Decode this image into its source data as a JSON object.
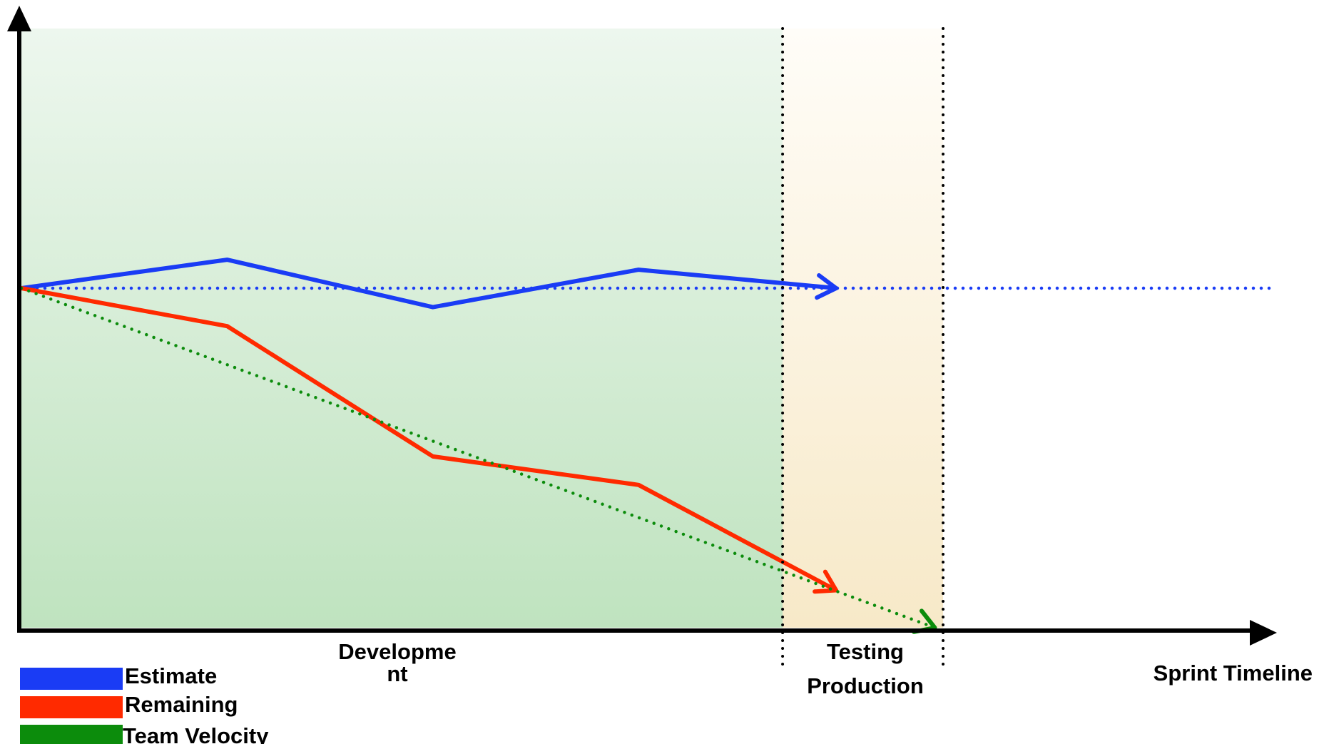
{
  "chart_data": {
    "type": "line",
    "title": "",
    "xlabel": "Sprint Timeline",
    "ylabel": "",
    "xlim": [
      0,
      6.2
    ],
    "ylim": [
      0,
      10
    ],
    "grid": false,
    "legend_position": "bottom-left",
    "phases": [
      {
        "name": "Development",
        "label_lines": [
          "Developme",
          "nt"
        ],
        "start": 0,
        "end": 3.7,
        "color": "#c8e6c9"
      },
      {
        "name": "Testing",
        "label_lines": [
          "Testing"
        ],
        "start": 3.7,
        "end": 4.48,
        "color": "#fbf0d6"
      },
      {
        "name": "Production",
        "label_lines": [
          "Production"
        ],
        "start": 4.48,
        "end": 6.2,
        "color": "#ffffff"
      }
    ],
    "series": [
      {
        "name": "Estimate",
        "color": "#1a3cf5",
        "style": "solid",
        "arrow": true,
        "x": [
          0,
          1,
          2,
          3,
          3.96
        ],
        "y": [
          6.8,
          7.37,
          6.42,
          7.17,
          6.8
        ]
      },
      {
        "name": "Estimate projection",
        "color": "#1a3cf5",
        "style": "dotted",
        "arrow": false,
        "legend": false,
        "x": [
          0,
          6.1
        ],
        "y": [
          6.8,
          6.8
        ]
      },
      {
        "name": "Remaining",
        "color": "#ff2a00",
        "style": "solid",
        "arrow": true,
        "x": [
          0,
          1,
          2,
          3,
          3.96
        ],
        "y": [
          6.8,
          6.04,
          3.43,
          2.86,
          0.75
        ]
      },
      {
        "name": "Team Velocity",
        "color": "#0c8c0c",
        "style": "dotted",
        "arrow": true,
        "x": [
          0,
          4.44
        ],
        "y": [
          6.8,
          0
        ]
      }
    ]
  }
}
